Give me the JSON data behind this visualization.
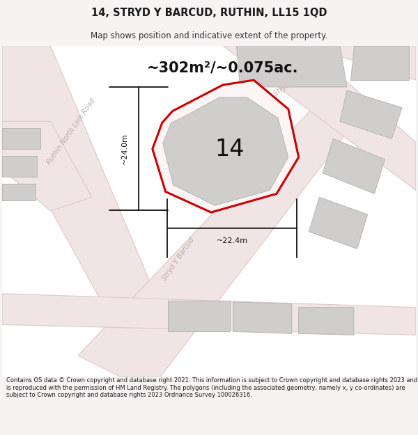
{
  "title_line1": "14, STRYD Y BARCUD, RUTHIN, LL15 1QD",
  "title_line2": "Map shows position and indicative extent of the property.",
  "area_label": "~302m²/~0.075ac.",
  "house_number": "14",
  "dim_vertical": "~24.0m",
  "dim_horizontal": "~22.4m",
  "footer_text": "Contains OS data © Crown copyright and database right 2021. This information is subject to Crown copyright and database rights 2023 and is reproduced with the permission of HM Land Registry. The polygons (including the associated geometry, namely x, y co-ordinates) are subject to Crown copyright and database rights 2023 Ordnance Survey 100026316.",
  "bg_color": "#f7f3f3",
  "road_color": "#f0e4e4",
  "road_edge": "#e0c8c8",
  "building_fill": "#d0cdcd",
  "building_edge": "#b8b5b5",
  "property_stroke": "#cc0000",
  "property_fill": "#fdf5f5",
  "dim_color": "#111111",
  "street_color": "#c0aaaa",
  "figsize": [
    6.0,
    6.25
  ],
  "dpi": 100
}
